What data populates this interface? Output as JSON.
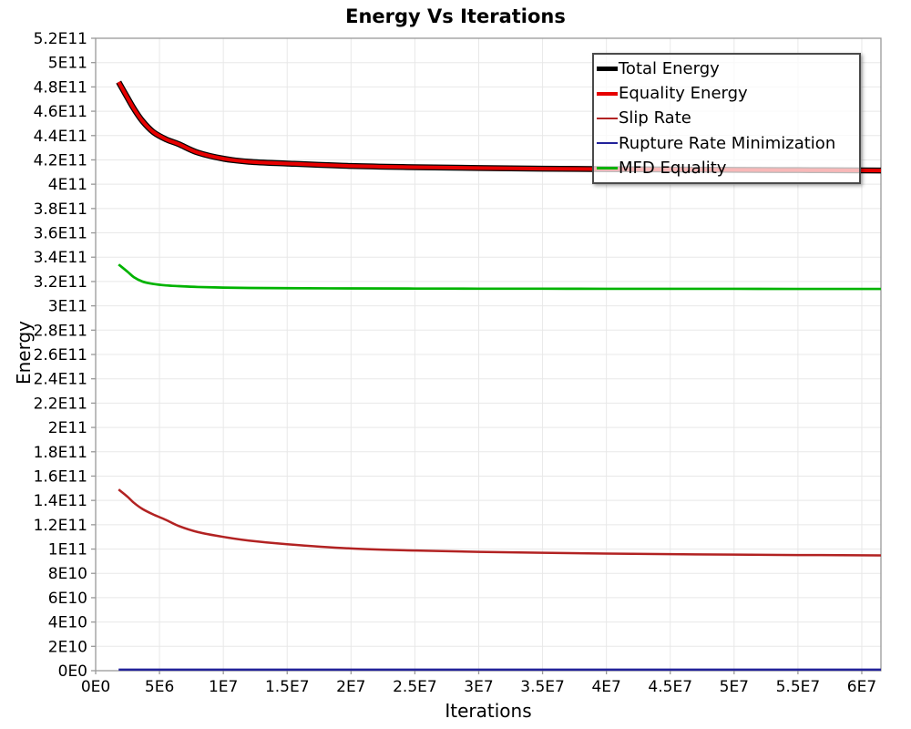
{
  "chart_data": {
    "type": "line",
    "title": "Energy Vs Iterations",
    "xlabel": "Iterations",
    "ylabel": "Energy",
    "xlim": [
      0,
      61500000.0
    ],
    "ylim": [
      0,
      520000000000.0
    ],
    "grid": true,
    "legend_position": "top-right",
    "background_color": "#ffffff",
    "grid_color": "#e8e8e8",
    "axis_color": "#999999",
    "x_ticks": {
      "values": [
        0,
        5000000.0,
        10000000.0,
        15000000.0,
        20000000.0,
        25000000.0,
        30000000.0,
        35000000.0,
        40000000.0,
        45000000.0,
        50000000.0,
        55000000.0,
        60000000.0
      ],
      "labels": [
        "0E0",
        "5E6",
        "1E7",
        "1.5E7",
        "2E7",
        "2.5E7",
        "3E7",
        "3.5E7",
        "4E7",
        "4.5E7",
        "5E7",
        "5.5E7",
        "6E7"
      ]
    },
    "y_ticks": {
      "values": [
        0,
        20000000000.0,
        40000000000.0,
        60000000000.0,
        80000000000.0,
        100000000000.0,
        120000000000.0,
        140000000000.0,
        160000000000.0,
        180000000000.0,
        200000000000.0,
        220000000000.0,
        240000000000.0,
        260000000000.0,
        280000000000.0,
        300000000000.0,
        320000000000.0,
        340000000000.0,
        360000000000.0,
        380000000000.0,
        400000000000.0,
        420000000000.0,
        440000000000.0,
        460000000000.0,
        480000000000.0,
        500000000000.0,
        520000000000.0
      ],
      "labels": [
        "0E0",
        "2E10",
        "4E10",
        "6E10",
        "8E10",
        "1E11",
        "1.2E11",
        "1.4E11",
        "1.6E11",
        "1.8E11",
        "2E11",
        "2.2E11",
        "2.4E11",
        "2.6E11",
        "2.8E11",
        "3E11",
        "3.2E11",
        "3.4E11",
        "3.6E11",
        "3.8E11",
        "4E11",
        "4.2E11",
        "4.4E11",
        "4.6E11",
        "4.8E11",
        "5E11",
        "5.2E11"
      ]
    },
    "x": [
      1800000.0,
      2500000.0,
      3000000.0,
      3660000.0,
      4500000.0,
      5500000.0,
      6500000.0,
      8000000.0,
      10000000.0,
      12000000.0,
      15000000.0,
      20000000.0,
      25000000.0,
      30000000.0,
      35000000.0,
      40000000.0,
      45000000.0,
      50000000.0,
      55000000.0,
      60000000.0,
      61500000.0
    ],
    "series": [
      {
        "name": "Total Energy",
        "color": "#000000",
        "line_width": 6.5,
        "legend_swatch_thickness": 5,
        "y": [
          484000000000.0,
          471000000000.0,
          462000000000.0,
          452000000000.0,
          443000000000.0,
          437000000000.0,
          433000000000.0,
          426000000000.0,
          421000000000.0,
          418500000000.0,
          417000000000.0,
          415000000000.0,
          414000000000.0,
          413300000000.0,
          412800000000.0,
          412400000000.0,
          412100000000.0,
          411800000000.0,
          411600000000.0,
          411400000000.0,
          411300000000.0
        ]
      },
      {
        "name": "Equality Energy",
        "color": "#e60000",
        "line_width": 4,
        "legend_swatch_thickness": 4,
        "y": [
          484000000000.0,
          471000000000.0,
          462000000000.0,
          452000000000.0,
          443000000000.0,
          437000000000.0,
          433000000000.0,
          426000000000.0,
          421000000000.0,
          418500000000.0,
          417000000000.0,
          415000000000.0,
          414000000000.0,
          413300000000.0,
          412800000000.0,
          412400000000.0,
          412100000000.0,
          411800000000.0,
          411600000000.0,
          411400000000.0,
          411300000000.0
        ]
      },
      {
        "name": "Slip Rate",
        "color": "#b22222",
        "line_width": 2.5,
        "legend_swatch_thickness": 2,
        "y": [
          149000000000.0,
          143000000000.0,
          138000000000.0,
          133000000000.0,
          128500000000.0,
          124000000000.0,
          119000000000.0,
          114000000000.0,
          110000000000.0,
          107000000000.0,
          104000000000.0,
          100500000000.0,
          98800000000.0,
          97700000000.0,
          96900000000.0,
          96300000000.0,
          95800000000.0,
          95400000000.0,
          95100000000.0,
          94900000000.0,
          94800000000.0
        ]
      },
      {
        "name": "Rupture Rate Minimization",
        "color": "#22229a",
        "line_width": 2.5,
        "legend_swatch_thickness": 2,
        "y": [
          800000000.0,
          800000000.0,
          800000000.0,
          800000000.0,
          800000000.0,
          800000000.0,
          800000000.0,
          800000000.0,
          800000000.0,
          800000000.0,
          800000000.0,
          800000000.0,
          800000000.0,
          800000000.0,
          800000000.0,
          800000000.0,
          800000000.0,
          800000000.0,
          800000000.0,
          800000000.0,
          800000000.0
        ]
      },
      {
        "name": "MFD Equality",
        "color": "#00b300",
        "line_width": 2.7,
        "legend_swatch_thickness": 3,
        "y": [
          334000000000.0,
          328000000000.0,
          323500000000.0,
          320000000000.0,
          318000000000.0,
          316800000000.0,
          316200000000.0,
          315500000000.0,
          315000000000.0,
          314700000000.0,
          314500000000.0,
          314300000000.0,
          314200000000.0,
          314100000000.0,
          314100000000.0,
          314000000000.0,
          314000000000.0,
          314000000000.0,
          313900000000.0,
          313900000000.0,
          313900000000.0
        ]
      }
    ]
  }
}
